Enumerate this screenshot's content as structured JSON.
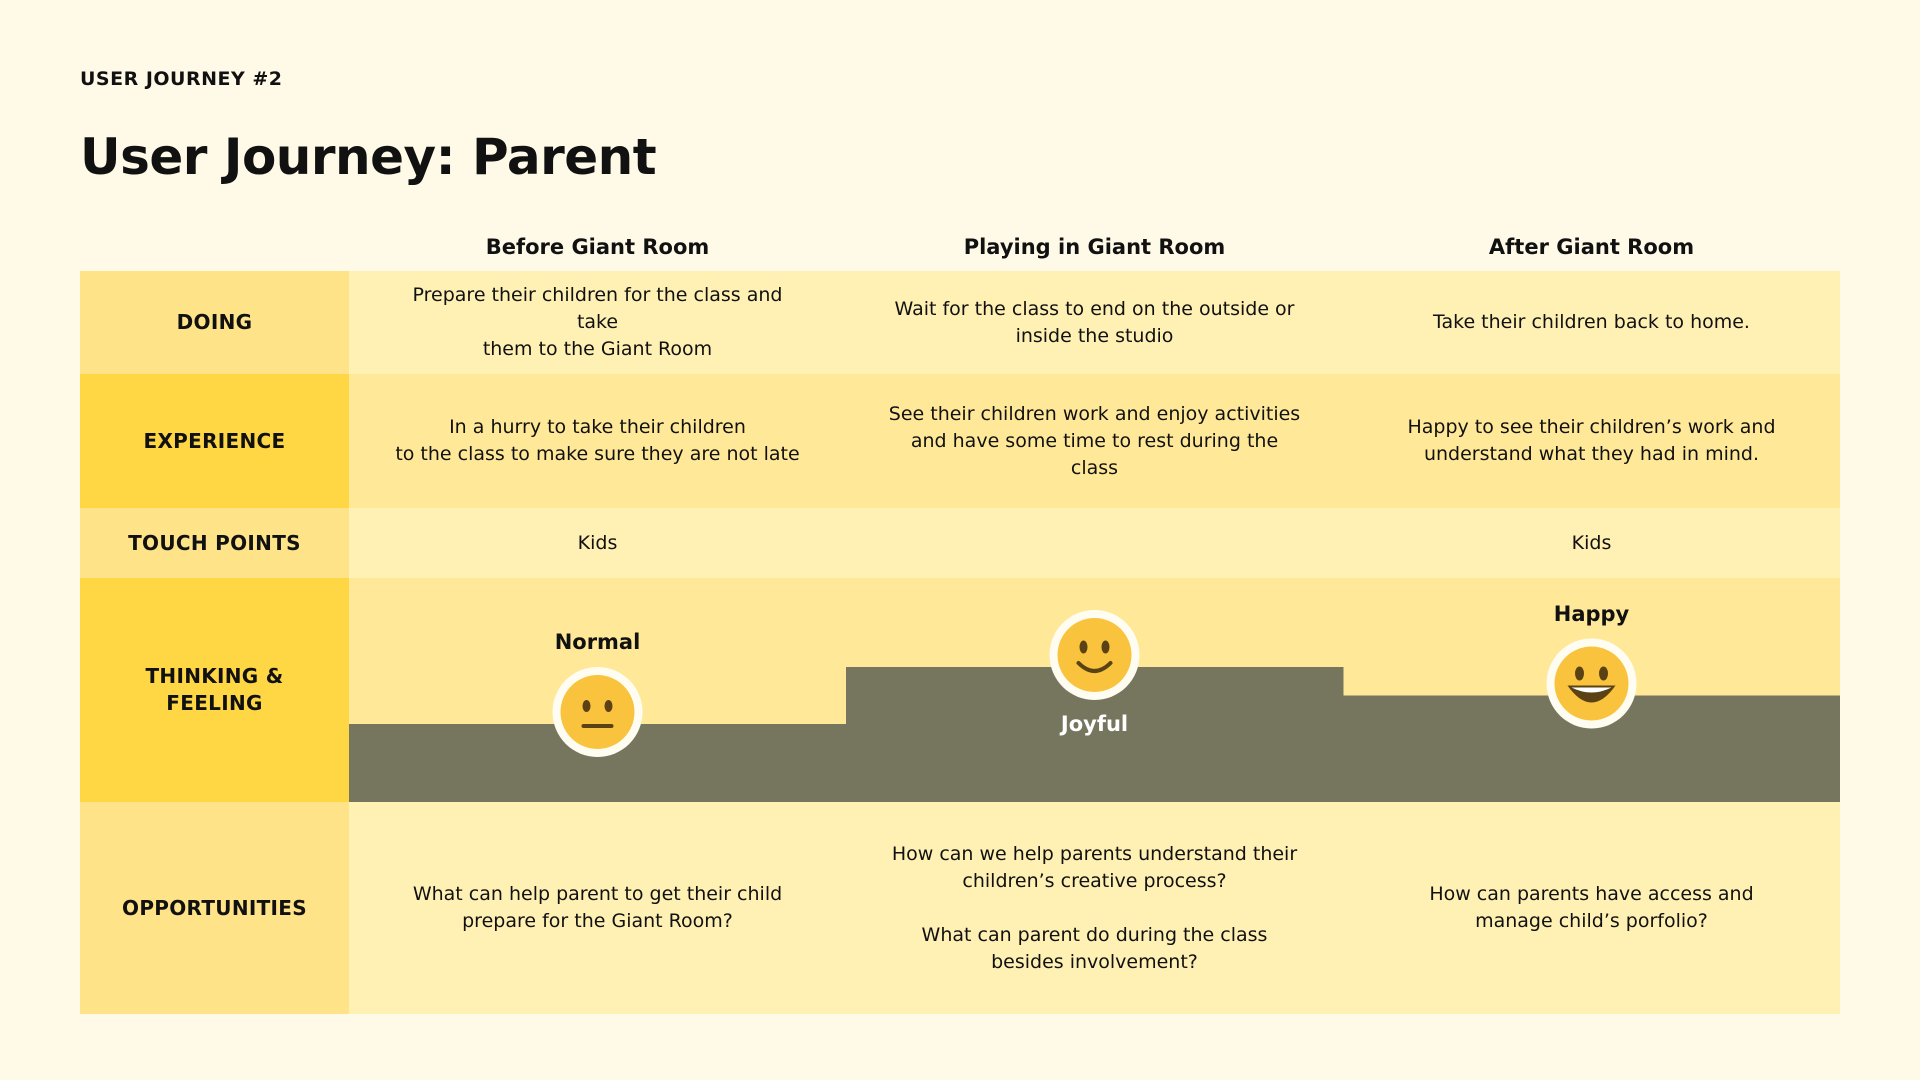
{
  "header": {
    "eyebrow": "USER JOURNEY #2",
    "title": "User Journey: Parent"
  },
  "columns": [
    "Before Giant Room",
    "Playing in Giant Room",
    "After Giant Room"
  ],
  "rows": {
    "doing": {
      "label": "DOING",
      "cells": [
        "Prepare their children for the class and take\nthem to the Giant Room",
        "Wait for the class to end on the outside or\ninside the studio",
        "Take their children back to home."
      ]
    },
    "experience": {
      "label": "EXPERIENCE",
      "cells": [
        "In a hurry to take their children\nto the class to make sure they are not late",
        "See their children work and enjoy activities\nand have some time to rest during the class",
        "Happy to see their children’s work and\nunderstand what they had in mind."
      ]
    },
    "touch_points": {
      "label": "TOUCH POINTS",
      "cells": [
        "Kids",
        "",
        "Kids"
      ]
    },
    "thinking_feeling": {
      "label": "THINKING &\nFEELING",
      "emotions": [
        {
          "label": "Normal",
          "face": "neutral-face-icon",
          "level": 1
        },
        {
          "label": "Joyful",
          "face": "smiling-face-icon",
          "level": 3
        },
        {
          "label": "Happy",
          "face": "grinning-face-icon",
          "level": 2
        }
      ]
    },
    "opportunities": {
      "label": "OPPORTUNITIES",
      "cells": [
        "What can help parent to get their child\nprepare for the Giant Room?",
        "How can we help parents understand their\nchildren’s creative process?\n\nWhat can parent do during the class\nbesides involvement?",
        "How can parents have access and\nmanage child’s porfolio?"
      ]
    }
  },
  "colors": {
    "background": "#fffae8",
    "label_dark": "#ffd744",
    "label_light": "#ffe388",
    "cell_dark": "#ffe998",
    "cell_light": "#fff0b4",
    "emotion_band": "#76765f",
    "face": "#f9c33d",
    "face_ring": "#fffdf2",
    "ink": "#111111"
  }
}
